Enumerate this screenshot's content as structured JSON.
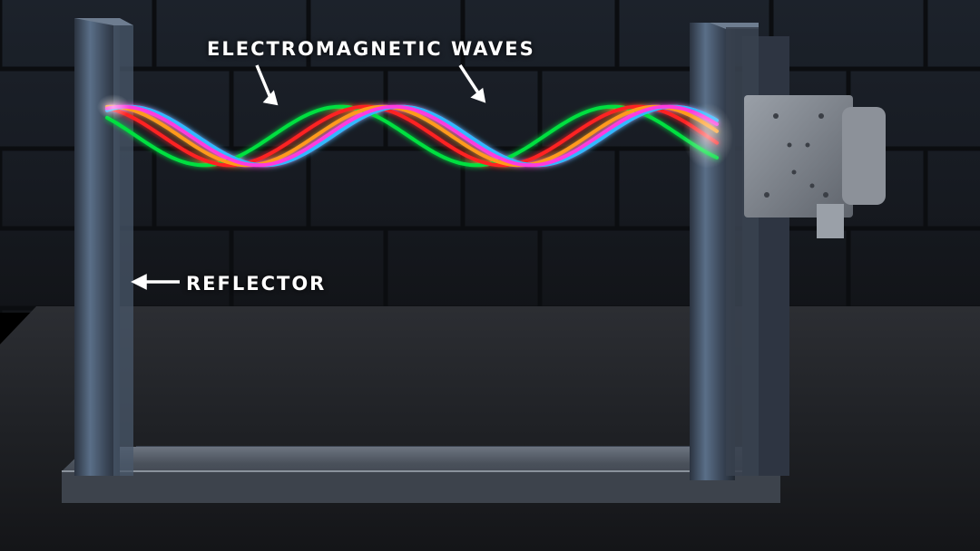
{
  "labels": {
    "waves": "ELECTROMAGNETIC WAVES",
    "reflector": "REFLECTOR"
  },
  "wave_colors": [
    "#00e040",
    "#ff2222",
    "#ff9a1a",
    "#33b8ff",
    "#ff3adf"
  ],
  "colors": {
    "brick_wall": "#1a1f26",
    "mortar": "#0c0e11",
    "table": "#26282c",
    "frame": "#3a4250",
    "emitter": "#7f848c"
  }
}
